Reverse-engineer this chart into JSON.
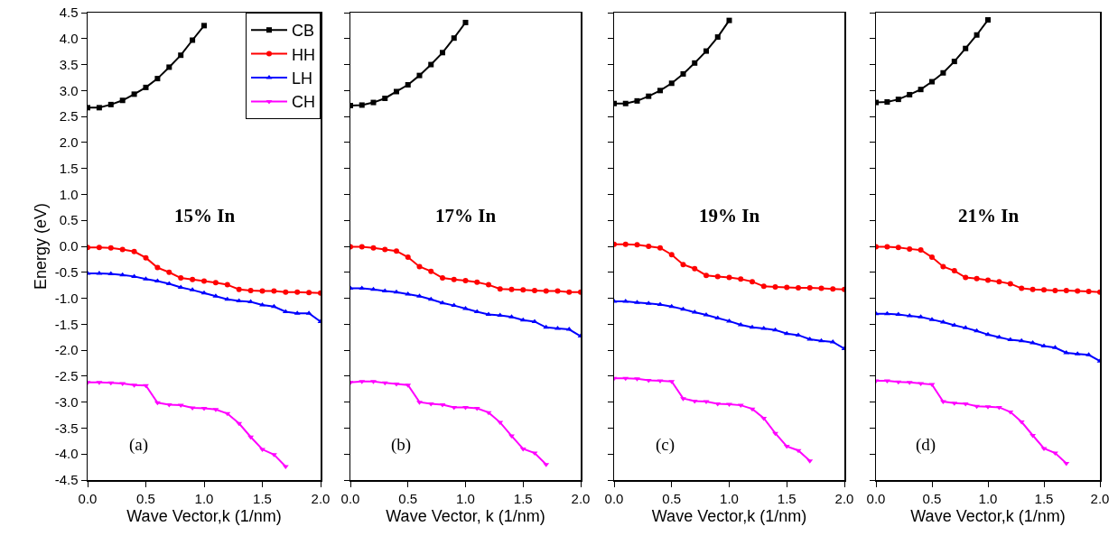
{
  "chart_data": [
    {
      "type": "line",
      "xlabel": "Wave Vector,k (1/nm)",
      "ylabel": "Energy (eV)",
      "annotations": [
        "15% In",
        "(a)"
      ],
      "legend": "top right",
      "xlim": [
        0,
        2
      ],
      "xticks": [
        {
          "value": 0,
          "label": "0.0"
        },
        {
          "value": 0.5,
          "label": "0.5"
        },
        {
          "value": 1,
          "label": "1.0"
        },
        {
          "value": 1.5,
          "label": "1.5"
        },
        {
          "value": 2,
          "label": "2.0"
        }
      ],
      "ylim": [
        -4.5,
        4.5
      ],
      "yticks": [
        -4.5,
        {
          "value": -4,
          "label": "-4.0"
        },
        -3.5,
        {
          "value": -3,
          "label": "-3.0"
        },
        -2.5,
        {
          "value": -2,
          "label": "-2.0"
        },
        -1.5,
        {
          "value": -1,
          "label": "-1.0"
        },
        -0.5,
        {
          "value": 0,
          "label": "0.0"
        },
        0.5,
        {
          "value": 1,
          "label": "1.0"
        },
        1.5,
        {
          "value": 2,
          "label": "2.0"
        },
        2.5,
        {
          "value": 3,
          "label": "3.0"
        },
        3.5,
        {
          "value": 4,
          "label": "4.0"
        },
        4.5
      ],
      "series": [
        {
          "name": "CB",
          "color": "#000000",
          "marker": "square",
          "x": [
            0,
            0.1,
            0.2,
            0.3,
            0.4,
            0.5,
            0.6,
            0.7,
            0.8,
            0.9,
            1.0
          ],
          "values": [
            2.67,
            2.67,
            2.73,
            2.81,
            2.93,
            3.06,
            3.23,
            3.45,
            3.68,
            3.97,
            4.25
          ]
        },
        {
          "name": "HH",
          "color": "#ff0000",
          "marker": "circle",
          "x": [
            0,
            0.1,
            0.2,
            0.3,
            0.4,
            0.5,
            0.6,
            0.7,
            0.8,
            0.9,
            1.0,
            1.1,
            1.2,
            1.3,
            1.4,
            1.5,
            1.6,
            1.7,
            1.8,
            1.9,
            2.0
          ],
          "values": [
            -0.02,
            -0.02,
            -0.03,
            -0.06,
            -0.1,
            -0.22,
            -0.41,
            -0.5,
            -0.61,
            -0.64,
            -0.67,
            -0.7,
            -0.74,
            -0.83,
            -0.85,
            -0.86,
            -0.86,
            -0.88,
            -0.88,
            -0.89,
            -0.9
          ]
        },
        {
          "name": "LH",
          "color": "#0000ff",
          "marker": "triangle",
          "x": [
            0,
            0.1,
            0.2,
            0.3,
            0.4,
            0.5,
            0.6,
            0.7,
            0.8,
            0.9,
            1.0,
            1.1,
            1.2,
            1.3,
            1.4,
            1.5,
            1.6,
            1.7,
            1.8,
            1.9,
            2.0
          ],
          "values": [
            -0.52,
            -0.52,
            -0.53,
            -0.55,
            -0.58,
            -0.63,
            -0.67,
            -0.72,
            -0.79,
            -0.84,
            -0.9,
            -0.96,
            -1.02,
            -1.05,
            -1.07,
            -1.13,
            -1.16,
            -1.26,
            -1.29,
            -1.29,
            -1.45
          ]
        },
        {
          "name": "CH",
          "color": "#ff00ff",
          "marker": "triangle-down",
          "x": [
            0,
            0.1,
            0.2,
            0.3,
            0.4,
            0.5,
            0.6,
            0.7,
            0.8,
            0.9,
            1.0,
            1.1,
            1.2,
            1.3,
            1.4,
            1.5,
            1.6,
            1.7
          ],
          "values": [
            -2.62,
            -2.62,
            -2.63,
            -2.64,
            -2.67,
            -2.68,
            -3.01,
            -3.05,
            -3.06,
            -3.11,
            -3.12,
            -3.14,
            -3.22,
            -3.41,
            -3.67,
            -3.91,
            -4.01,
            -4.24
          ]
        }
      ]
    },
    {
      "type": "line",
      "xlabel": "Wave Vector, k (1/nm)",
      "annotations": [
        "17% In",
        "(b)"
      ],
      "tick_labels": "x",
      "xlim": [
        0,
        2
      ],
      "xticks": [
        {
          "value": 0,
          "label": "0.0"
        },
        {
          "value": 0.5,
          "label": "0.5"
        },
        {
          "value": 1,
          "label": "1.0"
        },
        {
          "value": 1.5,
          "label": "1.5"
        },
        {
          "value": 2,
          "label": "2.0"
        }
      ],
      "ylim": [
        -4.5,
        4.5
      ],
      "yticks": [
        {
          "value": -4.5,
          "label": null
        },
        {
          "value": -4,
          "label": null
        },
        {
          "value": -3.5,
          "label": null
        },
        {
          "value": -3,
          "label": null
        },
        {
          "value": -2.5,
          "label": null
        },
        {
          "value": -2,
          "label": null
        },
        {
          "value": -1.5,
          "label": null
        },
        {
          "value": -1,
          "label": null
        },
        {
          "value": -0.5,
          "label": null
        },
        {
          "value": 0,
          "label": null
        },
        {
          "value": 0.5,
          "label": null
        },
        {
          "value": 1,
          "label": null
        },
        {
          "value": 1.5,
          "label": null
        },
        {
          "value": 2,
          "label": null
        },
        {
          "value": 2.5,
          "label": null
        },
        {
          "value": 3,
          "label": null
        },
        {
          "value": 3.5,
          "label": null
        },
        {
          "value": 4,
          "label": null
        },
        {
          "value": 4.5,
          "label": null
        }
      ],
      "series": [
        {
          "color": "#000000",
          "marker": "square",
          "x": [
            0,
            0.1,
            0.2,
            0.3,
            0.4,
            0.5,
            0.6,
            0.7,
            0.8,
            0.9,
            1.0
          ],
          "values": [
            2.71,
            2.72,
            2.77,
            2.85,
            2.98,
            3.11,
            3.29,
            3.5,
            3.73,
            4.01,
            4.31
          ]
        },
        {
          "color": "#ff0000",
          "marker": "circle",
          "x": [
            0,
            0.1,
            0.2,
            0.3,
            0.4,
            0.5,
            0.6,
            0.7,
            0.8,
            0.9,
            1.0,
            1.1,
            1.2,
            1.3,
            1.4,
            1.5,
            1.6,
            1.7,
            1.8,
            1.9,
            2.0
          ],
          "values": [
            -0.01,
            -0.01,
            -0.03,
            -0.06,
            -0.09,
            -0.21,
            -0.39,
            -0.48,
            -0.61,
            -0.64,
            -0.66,
            -0.69,
            -0.74,
            -0.82,
            -0.83,
            -0.84,
            -0.85,
            -0.86,
            -0.86,
            -0.88,
            -0.88
          ]
        },
        {
          "color": "#0000ff",
          "marker": "triangle",
          "x": [
            0,
            0.1,
            0.2,
            0.3,
            0.4,
            0.5,
            0.6,
            0.7,
            0.8,
            0.9,
            1.0,
            1.1,
            1.2,
            1.3,
            1.4,
            1.5,
            1.6,
            1.7,
            1.8,
            1.9,
            2.0
          ],
          "values": [
            -0.81,
            -0.81,
            -0.83,
            -0.86,
            -0.88,
            -0.92,
            -0.96,
            -1.02,
            -1.09,
            -1.14,
            -1.2,
            -1.26,
            -1.31,
            -1.33,
            -1.36,
            -1.42,
            -1.45,
            -1.56,
            -1.58,
            -1.6,
            -1.73
          ]
        },
        {
          "color": "#ff00ff",
          "marker": "triangle-down",
          "x": [
            0,
            0.1,
            0.2,
            0.3,
            0.4,
            0.5,
            0.6,
            0.7,
            0.8,
            0.9,
            1.0,
            1.1,
            1.2,
            1.3,
            1.4,
            1.5,
            1.6,
            1.7
          ],
          "values": [
            -2.62,
            -2.6,
            -2.6,
            -2.63,
            -2.65,
            -2.67,
            -3.0,
            -3.03,
            -3.05,
            -3.1,
            -3.1,
            -3.12,
            -3.2,
            -3.39,
            -3.65,
            -3.9,
            -3.98,
            -4.2
          ]
        }
      ]
    },
    {
      "type": "line",
      "xlabel": "Wave Vector,k (1/nm)",
      "annotations": [
        "19% In",
        "(c)"
      ],
      "tick_labels": "x",
      "xlim": [
        0,
        2
      ],
      "xticks": [
        {
          "value": 0,
          "label": "0.0"
        },
        {
          "value": 0.5,
          "label": "0.5"
        },
        {
          "value": 1,
          "label": "1.0"
        },
        {
          "value": 1.5,
          "label": "1.5"
        },
        {
          "value": 2,
          "label": "2.0"
        }
      ],
      "ylim": [
        -4.5,
        4.5
      ],
      "yticks": [
        {
          "value": -4.5,
          "label": null
        },
        {
          "value": -4,
          "label": null
        },
        {
          "value": -3.5,
          "label": null
        },
        {
          "value": -3,
          "label": null
        },
        {
          "value": -2.5,
          "label": null
        },
        {
          "value": -2,
          "label": null
        },
        {
          "value": -1.5,
          "label": null
        },
        {
          "value": -1,
          "label": null
        },
        {
          "value": -0.5,
          "label": null
        },
        {
          "value": 0,
          "label": null
        },
        {
          "value": 0.5,
          "label": null
        },
        {
          "value": 1,
          "label": null
        },
        {
          "value": 1.5,
          "label": null
        },
        {
          "value": 2,
          "label": null
        },
        {
          "value": 2.5,
          "label": null
        },
        {
          "value": 3,
          "label": null
        },
        {
          "value": 3.5,
          "label": null
        },
        {
          "value": 4,
          "label": null
        },
        {
          "value": 4.5,
          "label": null
        }
      ],
      "series": [
        {
          "color": "#000000",
          "marker": "square",
          "x": [
            0,
            0.1,
            0.2,
            0.3,
            0.4,
            0.5,
            0.6,
            0.7,
            0.8,
            0.9,
            1.0
          ],
          "values": [
            2.75,
            2.75,
            2.8,
            2.89,
            3.0,
            3.14,
            3.32,
            3.53,
            3.76,
            4.03,
            4.35
          ]
        },
        {
          "color": "#ff0000",
          "marker": "circle",
          "x": [
            0,
            0.1,
            0.2,
            0.3,
            0.4,
            0.5,
            0.6,
            0.7,
            0.8,
            0.9,
            1.0,
            1.1,
            1.2,
            1.3,
            1.4,
            1.5,
            1.6,
            1.7,
            1.8,
            1.9,
            2.0
          ],
          "values": [
            0.04,
            0.04,
            0.03,
            0.0,
            -0.03,
            -0.16,
            -0.35,
            -0.43,
            -0.56,
            -0.58,
            -0.6,
            -0.63,
            -0.68,
            -0.77,
            -0.78,
            -0.79,
            -0.8,
            -0.8,
            -0.81,
            -0.82,
            -0.83
          ]
        },
        {
          "color": "#0000ff",
          "marker": "triangle",
          "x": [
            0,
            0.1,
            0.2,
            0.3,
            0.4,
            0.5,
            0.6,
            0.7,
            0.8,
            0.9,
            1.0,
            1.1,
            1.2,
            1.3,
            1.4,
            1.5,
            1.6,
            1.7,
            1.8,
            1.9,
            2.0
          ],
          "values": [
            -1.06,
            -1.06,
            -1.08,
            -1.1,
            -1.12,
            -1.16,
            -1.21,
            -1.27,
            -1.32,
            -1.38,
            -1.44,
            -1.51,
            -1.56,
            -1.58,
            -1.61,
            -1.68,
            -1.71,
            -1.79,
            -1.82,
            -1.84,
            -1.97
          ]
        },
        {
          "color": "#ff00ff",
          "marker": "triangle-down",
          "x": [
            0,
            0.1,
            0.2,
            0.3,
            0.4,
            0.5,
            0.6,
            0.7,
            0.8,
            0.9,
            1.0,
            1.1,
            1.2,
            1.3,
            1.4,
            1.5,
            1.6,
            1.7
          ],
          "values": [
            -2.54,
            -2.54,
            -2.55,
            -2.58,
            -2.59,
            -2.6,
            -2.93,
            -2.98,
            -2.99,
            -3.03,
            -3.04,
            -3.06,
            -3.13,
            -3.31,
            -3.6,
            -3.85,
            -3.93,
            -4.13
          ]
        }
      ]
    },
    {
      "type": "line",
      "xlabel": "Wave Vector,k (1/nm)",
      "annotations": [
        "21% In",
        "(d)"
      ],
      "tick_labels": "x",
      "xlim": [
        0,
        2
      ],
      "xticks": [
        {
          "value": 0,
          "label": "0.0"
        },
        {
          "value": 0.5,
          "label": "0.5"
        },
        {
          "value": 1,
          "label": "1.0"
        },
        {
          "value": 1.5,
          "label": "1.5"
        },
        {
          "value": 2,
          "label": "2.0"
        }
      ],
      "ylim": [
        -4.5,
        4.5
      ],
      "yticks": [
        {
          "value": -4.5,
          "label": null
        },
        {
          "value": -4,
          "label": null
        },
        {
          "value": -3.5,
          "label": null
        },
        {
          "value": -3,
          "label": null
        },
        {
          "value": -2.5,
          "label": null
        },
        {
          "value": -2,
          "label": null
        },
        {
          "value": -1.5,
          "label": null
        },
        {
          "value": -1,
          "label": null
        },
        {
          "value": -0.5,
          "label": null
        },
        {
          "value": 0,
          "label": null
        },
        {
          "value": 0.5,
          "label": null
        },
        {
          "value": 1,
          "label": null
        },
        {
          "value": 1.5,
          "label": null
        },
        {
          "value": 2,
          "label": null
        },
        {
          "value": 2.5,
          "label": null
        },
        {
          "value": 3,
          "label": null
        },
        {
          "value": 3.5,
          "label": null
        },
        {
          "value": 4,
          "label": null
        },
        {
          "value": 4.5,
          "label": null
        }
      ],
      "series": [
        {
          "color": "#000000",
          "marker": "square",
          "x": [
            0,
            0.1,
            0.2,
            0.3,
            0.4,
            0.5,
            0.6,
            0.7,
            0.8,
            0.9,
            1.0
          ],
          "values": [
            2.77,
            2.78,
            2.83,
            2.92,
            3.02,
            3.17,
            3.34,
            3.56,
            3.81,
            4.07,
            4.36
          ]
        },
        {
          "color": "#ff0000",
          "marker": "circle",
          "x": [
            0,
            0.1,
            0.2,
            0.3,
            0.4,
            0.5,
            0.6,
            0.7,
            0.8,
            0.9,
            1.0,
            1.1,
            1.2,
            1.3,
            1.4,
            1.5,
            1.6,
            1.7,
            1.8,
            1.9,
            2.0
          ],
          "values": [
            -0.01,
            -0.01,
            -0.02,
            -0.05,
            -0.07,
            -0.21,
            -0.39,
            -0.47,
            -0.6,
            -0.62,
            -0.65,
            -0.68,
            -0.72,
            -0.81,
            -0.83,
            -0.84,
            -0.85,
            -0.85,
            -0.86,
            -0.87,
            -0.88
          ]
        },
        {
          "color": "#0000ff",
          "marker": "triangle",
          "x": [
            0,
            0.1,
            0.2,
            0.3,
            0.4,
            0.5,
            0.6,
            0.7,
            0.8,
            0.9,
            1.0,
            1.1,
            1.2,
            1.3,
            1.4,
            1.5,
            1.6,
            1.7,
            1.8,
            1.9,
            2.0
          ],
          "values": [
            -1.3,
            -1.3,
            -1.31,
            -1.34,
            -1.36,
            -1.41,
            -1.46,
            -1.52,
            -1.57,
            -1.63,
            -1.7,
            -1.75,
            -1.8,
            -1.82,
            -1.86,
            -1.92,
            -1.95,
            -2.05,
            -2.07,
            -2.09,
            -2.21
          ]
        },
        {
          "color": "#ff00ff",
          "marker": "triangle-down",
          "x": [
            0,
            0.1,
            0.2,
            0.3,
            0.4,
            0.5,
            0.6,
            0.7,
            0.8,
            0.9,
            1.0,
            1.1,
            1.2,
            1.3,
            1.4,
            1.5,
            1.6,
            1.7
          ],
          "values": [
            -2.59,
            -2.59,
            -2.61,
            -2.62,
            -2.64,
            -2.66,
            -2.99,
            -3.02,
            -3.03,
            -3.08,
            -3.09,
            -3.1,
            -3.19,
            -3.38,
            -3.64,
            -3.89,
            -3.98,
            -4.18
          ]
        }
      ]
    }
  ]
}
